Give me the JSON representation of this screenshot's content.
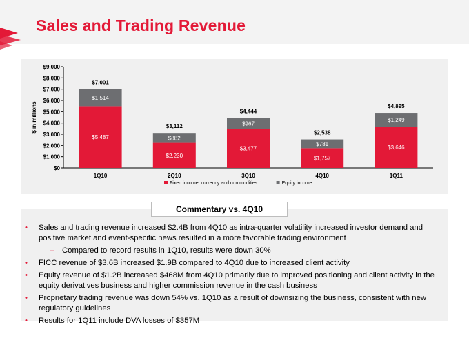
{
  "page": {
    "title": "Sales and Trading Revenue",
    "commentary_title": "Commentary vs. 4Q10"
  },
  "colors": {
    "accent": "#e31937",
    "equity": "#6d6e71",
    "panel": "#f0f0f0"
  },
  "chart_data": {
    "type": "bar",
    "stacked": true,
    "categories": [
      "1Q10",
      "2Q10",
      "3Q10",
      "4Q10",
      "1Q11"
    ],
    "series": [
      {
        "name": "Fixed income, currency and commodities",
        "color": "#e31937",
        "values": [
          5487,
          2230,
          3477,
          1757,
          3646
        ],
        "labels": [
          "$5,487",
          "$2,230",
          "$3,477",
          "$1,757",
          "$3,646"
        ]
      },
      {
        "name": "Equity income",
        "color": "#6d6e71",
        "values": [
          1514,
          882,
          967,
          781,
          1249
        ],
        "labels": [
          "$1,514",
          "$882",
          "$967",
          "$781",
          "$1,249"
        ]
      }
    ],
    "totals": [
      7001,
      3112,
      4444,
      2538,
      4895
    ],
    "total_labels": [
      "$7,001",
      "$3,112",
      "$4,444",
      "$2,538",
      "$4,895"
    ],
    "ylabel": "$ in millions",
    "ylim": [
      0,
      9000
    ],
    "yticks": [
      "$0",
      "$1,000",
      "$2,000",
      "$3,000",
      "$4,000",
      "$5,000",
      "$6,000",
      "$7,000",
      "$8,000",
      "$9,000"
    ],
    "grid": false,
    "legend": "bottom"
  },
  "commentary": [
    {
      "level": 1,
      "text": "Sales and trading revenue increased $2.4B from 4Q10 as intra-quarter volatility increased investor demand and positive market and event-specific news resulted in a more favorable trading environment"
    },
    {
      "level": 2,
      "text": "Compared to record results in 1Q10, results were down 30%"
    },
    {
      "level": 1,
      "text": "FICC revenue of $3.6B increased $1.9B compared to 4Q10 due to increased client activity"
    },
    {
      "level": 1,
      "text": "Equity revenue of $1.2B increased $468M from 4Q10 primarily due to improved positioning and client activity in the equity derivatives business and higher commission revenue in the cash business"
    },
    {
      "level": 1,
      "text": "Proprietary trading revenue was down 54% vs. 1Q10 as a result of downsizing the business, consistent with new regulatory guidelines"
    },
    {
      "level": 1,
      "text": "Results for 1Q11 include DVA losses of $357M"
    }
  ]
}
